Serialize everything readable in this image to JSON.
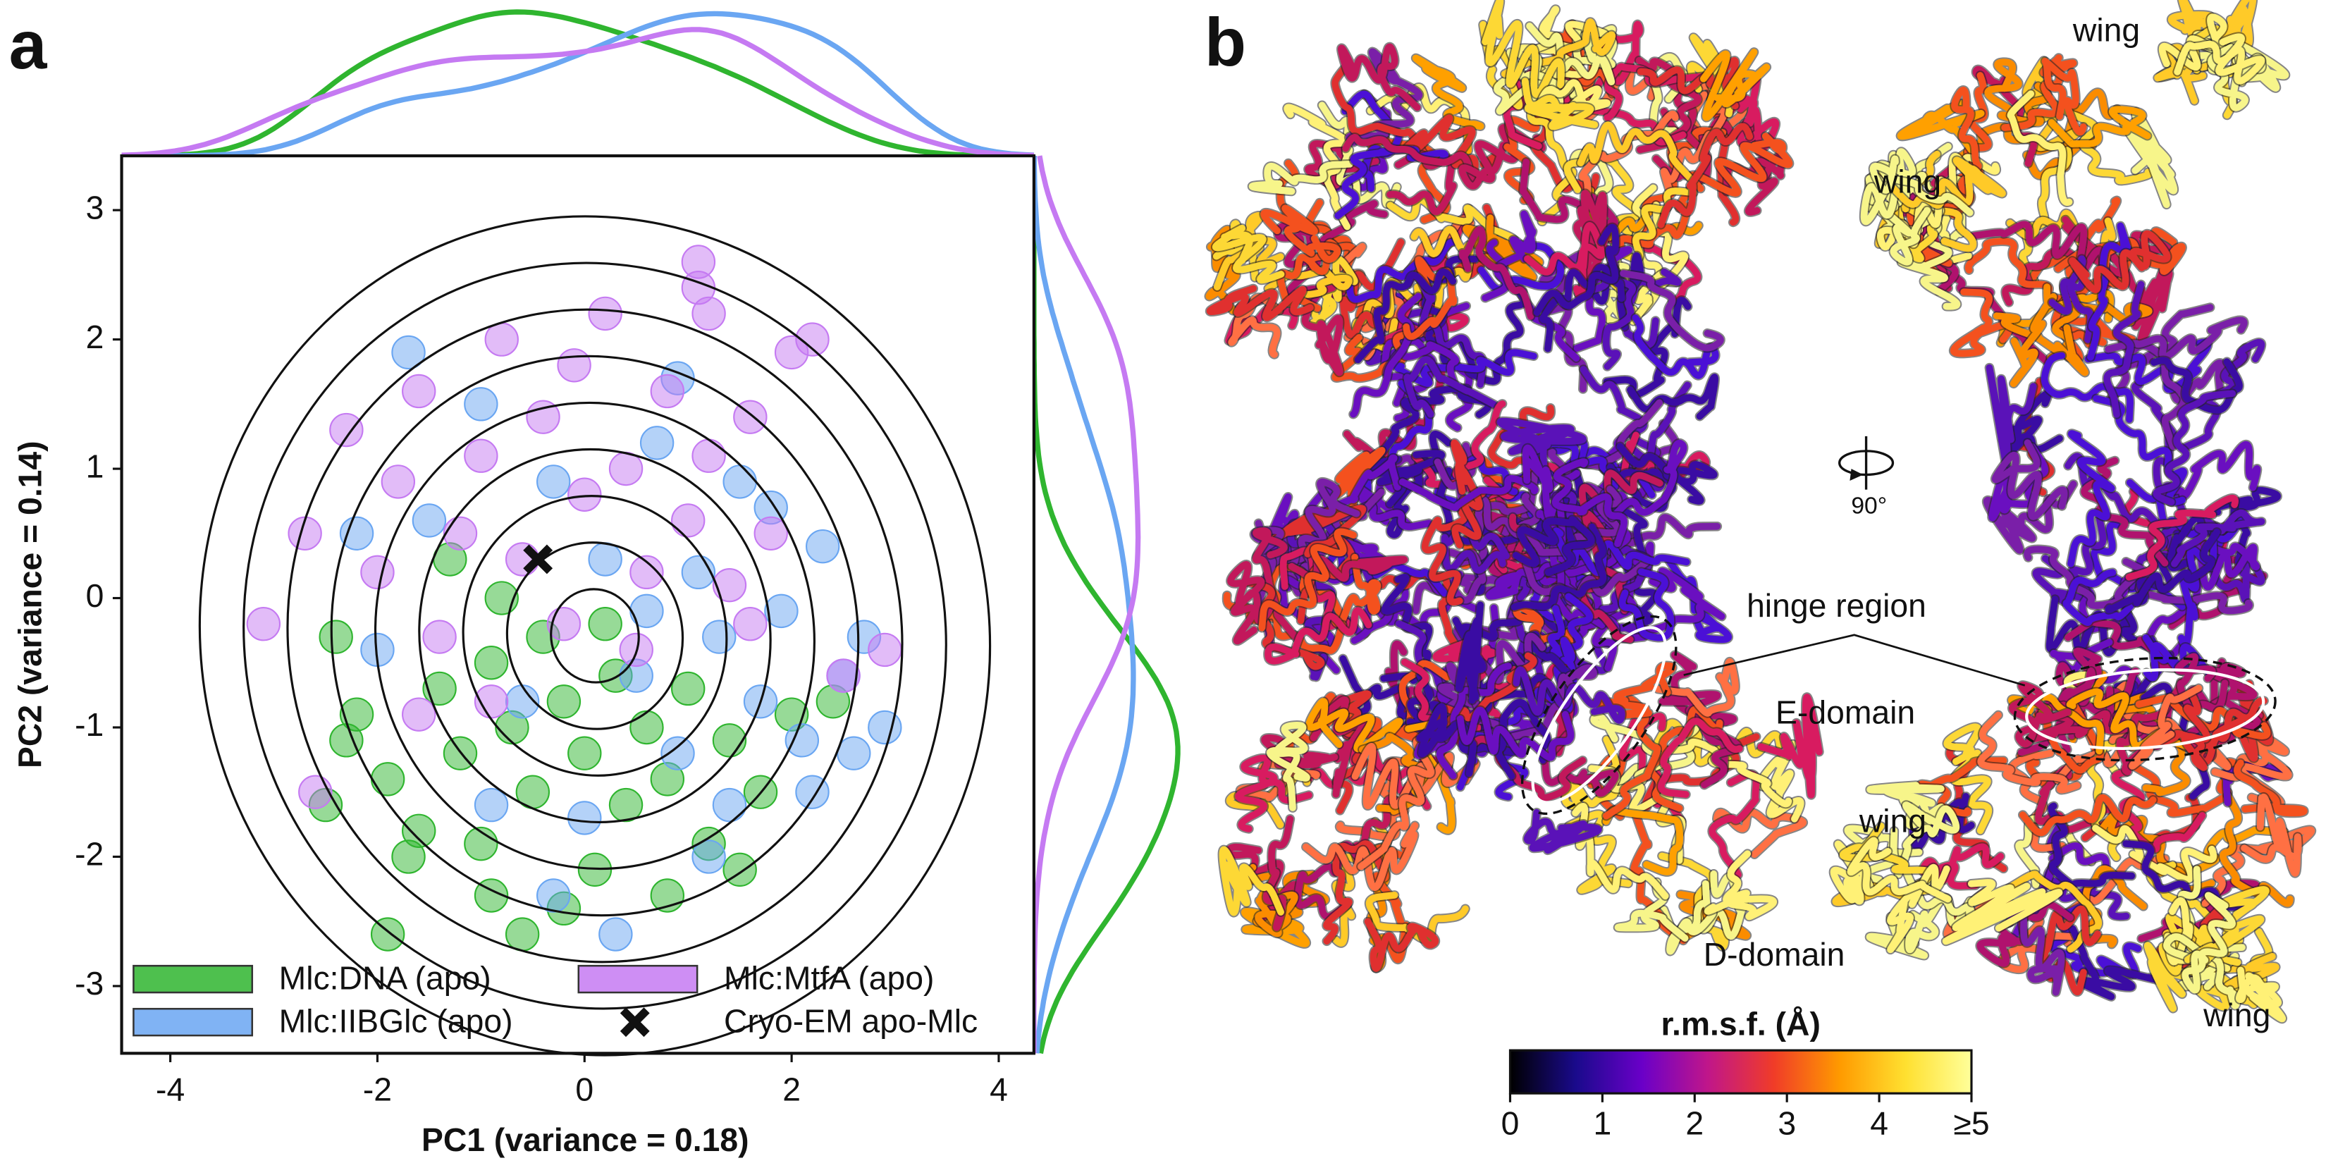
{
  "panel_labels": [
    "a",
    "b"
  ],
  "chart_data": [
    {
      "type": "scatter",
      "xlabel": "PC1 (variance = 0.18)",
      "ylabel": "PC2 (variance = 0.14)",
      "xlim": [
        -4.47,
        4.34
      ],
      "ylim": [
        -3.52,
        3.42
      ],
      "xticks": [
        -4,
        -2,
        0,
        2,
        4
      ],
      "yticks": [
        -3,
        -2,
        -1,
        0,
        1,
        2,
        3
      ],
      "grid": false,
      "legend": "lower left",
      "legend_columns": 2,
      "opacity": 0.5,
      "marginals": true,
      "contours": true,
      "series": [
        {
          "name": "Mlc:DNA (apo)",
          "color": "#2fb52f",
          "marker": "circle",
          "x": [
            -2.3,
            -2.2,
            -1.9,
            -1.6,
            -1.4,
            -1.2,
            -1.0,
            -0.9,
            -0.7,
            -0.5,
            -0.4,
            -0.2,
            0.0,
            0.1,
            0.3,
            0.4,
            0.6,
            0.8,
            1.0,
            1.2,
            1.4,
            1.7,
            2.0,
            2.4,
            -1.7,
            -0.2,
            -1.9,
            -0.6,
            0.8,
            -2.4,
            -1.3,
            -0.9,
            0.2,
            1.5,
            -0.8,
            -2.5
          ],
          "values": [
            -1.1,
            -0.9,
            -1.4,
            -1.8,
            -0.7,
            -1.2,
            -1.9,
            -0.5,
            -1.0,
            -1.5,
            -0.3,
            -0.8,
            -1.2,
            -2.1,
            -0.6,
            -1.6,
            -1.0,
            -1.4,
            -0.7,
            -1.9,
            -1.1,
            -1.5,
            -0.9,
            -0.8,
            -2.0,
            -2.4,
            -2.6,
            -2.6,
            -2.3,
            -0.3,
            0.3,
            -2.3,
            -0.2,
            -2.1,
            0.0,
            -1.6
          ]
        },
        {
          "name": "Mlc:IIBGlc (apo)",
          "color": "#6aa6f2",
          "marker": "circle",
          "x": [
            -2.0,
            -1.5,
            -1.0,
            -0.6,
            -0.3,
            0.0,
            0.2,
            0.5,
            0.7,
            0.9,
            1.1,
            1.3,
            1.5,
            1.7,
            1.9,
            2.1,
            2.3,
            2.5,
            2.7,
            2.9,
            2.6,
            1.2,
            0.3,
            -0.3,
            -1.7,
            -2.2,
            0.9,
            1.8,
            2.2,
            -0.9,
            0.6,
            1.4
          ],
          "values": [
            -0.4,
            0.6,
            1.5,
            -0.8,
            0.9,
            -1.7,
            0.3,
            -0.6,
            1.2,
            -1.2,
            0.2,
            -0.3,
            0.9,
            -0.8,
            -0.1,
            -1.1,
            0.4,
            -0.6,
            -0.3,
            -1.0,
            -1.2,
            -2.0,
            -2.6,
            -2.3,
            1.9,
            0.5,
            1.7,
            0.7,
            -1.5,
            -1.6,
            -0.1,
            -1.6
          ]
        },
        {
          "name": "Mlc:MtfA (apo)",
          "color": "#c57af2",
          "marker": "circle",
          "x": [
            -3.1,
            -2.7,
            -2.6,
            -2.3,
            -2.0,
            -1.8,
            -1.6,
            -1.4,
            -1.2,
            -1.0,
            -0.8,
            -0.6,
            -0.4,
            -0.2,
            0.0,
            0.2,
            0.4,
            0.6,
            0.8,
            1.0,
            1.2,
            1.4,
            1.6,
            1.8,
            2.0,
            2.2,
            2.5,
            2.9,
            1.1,
            1.2,
            -0.9,
            0.5,
            -1.6,
            -0.1,
            1.6,
            1.1
          ],
          "values": [
            -0.2,
            0.5,
            -1.5,
            1.3,
            0.2,
            0.9,
            1.6,
            -0.3,
            0.5,
            1.1,
            2.0,
            0.3,
            1.4,
            -0.2,
            0.8,
            2.2,
            1.0,
            0.2,
            1.6,
            0.6,
            1.1,
            0.1,
            1.4,
            0.5,
            1.9,
            2.0,
            -0.6,
            -0.4,
            2.4,
            2.2,
            -0.8,
            -0.4,
            -0.9,
            1.8,
            -0.2,
            2.6
          ]
        },
        {
          "name": "Cryo-EM apo-Mlc",
          "color": "#111111",
          "marker": "x",
          "x": [
            -0.45
          ],
          "values": [
            0.3
          ]
        }
      ]
    },
    {
      "type": "colorbar",
      "title": "r.m.s.f. (Å)",
      "xlim": [
        0,
        5
      ],
      "xticks": [
        0,
        1,
        2,
        3,
        4,
        {
          "value": 5,
          "label": "≥5"
        }
      ],
      "colors": [
        "#000000",
        "#1a0a8c",
        "#6a00c8",
        "#c0168a",
        "#f03c28",
        "#ff9a00",
        "#ffe030",
        "#ffff9a"
      ]
    }
  ],
  "panel_b": {
    "annotations": [
      "wing",
      "wing",
      "wing",
      "wing",
      "hinge region",
      "E-domain",
      "D-domain"
    ],
    "rotation": "90°"
  }
}
